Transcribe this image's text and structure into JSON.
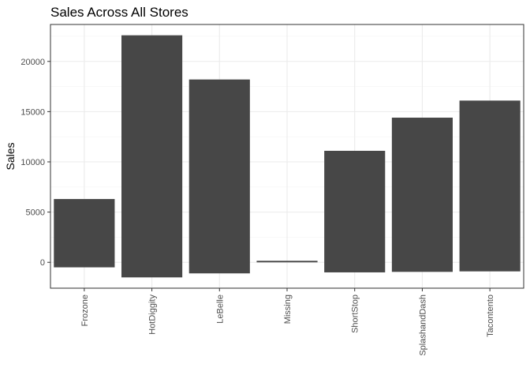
{
  "chart_data": {
    "type": "bar",
    "title": "Sales Across All Stores",
    "xlabel": "",
    "ylabel": "Sales",
    "categories": [
      "Frozone",
      "HotDiggity",
      "LeBelle",
      "Missing",
      "ShortStop",
      "SplashandDash",
      "Tacontento"
    ],
    "bars": [
      {
        "low": -500,
        "high": 6300
      },
      {
        "low": -1500,
        "high": 22600
      },
      {
        "low": -1100,
        "high": 18200
      },
      {
        "low": 0,
        "high": 150
      },
      {
        "low": -1000,
        "high": 11100
      },
      {
        "low": -950,
        "high": 14400
      },
      {
        "low": -900,
        "high": 16100
      }
    ],
    "yticks": [
      0,
      5000,
      10000,
      15000,
      20000
    ],
    "ytick_labels": [
      "0",
      "5000",
      "10000",
      "15000",
      "20000"
    ],
    "ylim": [
      -2575,
      23675
    ],
    "grid": true,
    "legend": "none",
    "colors": {
      "bar": "#474747",
      "panel_border": "#333333",
      "grid_major": "#ebebeb",
      "grid_minor": "#f5f5f5",
      "tick": "#333333"
    }
  }
}
